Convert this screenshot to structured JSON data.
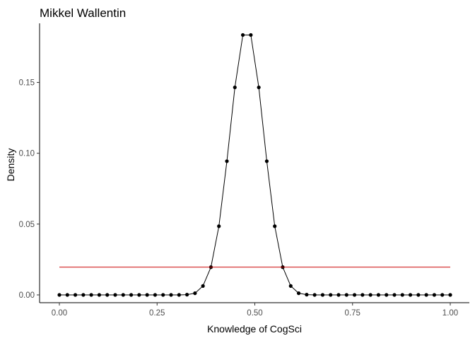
{
  "chart_data": {
    "type": "line",
    "title": "Mikkel Wallentin",
    "xlabel": "Knowledge of CogSci",
    "ylabel": "Density",
    "xlim": [
      0,
      1
    ],
    "ylim": [
      0,
      0.184
    ],
    "x_ticks": [
      0,
      0.25,
      0.5,
      0.75,
      1
    ],
    "x_tick_labels": [
      "0.00",
      "0.25",
      "0.50",
      "0.75",
      "1.00"
    ],
    "y_ticks": [
      0,
      0.05,
      0.1,
      0.15
    ],
    "y_tick_labels": [
      "0.00",
      "0.05",
      "0.10",
      "0.15"
    ],
    "grid": false,
    "legend": "none",
    "series": [
      {
        "style": "line-with-points",
        "color": "#000000",
        "x": [
          0,
          0.020408,
          0.040816,
          0.061224,
          0.081633,
          0.102041,
          0.122449,
          0.142857,
          0.163265,
          0.183673,
          0.204082,
          0.22449,
          0.244898,
          0.265306,
          0.285714,
          0.306122,
          0.326531,
          0.346939,
          0.367347,
          0.387755,
          0.408163,
          0.428571,
          0.44898,
          0.469388,
          0.489796,
          0.510204,
          0.530612,
          0.55102,
          0.571429,
          0.591837,
          0.612245,
          0.632653,
          0.653061,
          0.673469,
          0.693878,
          0.714286,
          0.734694,
          0.755102,
          0.77551,
          0.795918,
          0.816327,
          0.836735,
          0.857143,
          0.877551,
          0.897959,
          0.918367,
          0.938776,
          0.959184,
          0.979592,
          1
        ],
        "y": [
          0,
          0,
          0,
          0,
          0,
          0,
          0,
          0,
          0,
          0,
          0,
          0,
          0,
          0,
          0,
          0,
          0.0002,
          0.0012,
          0.0063,
          0.0196,
          0.0485,
          0.0944,
          0.1465,
          0.1835,
          0.1835,
          0.1465,
          0.0944,
          0.0485,
          0.0196,
          0.0063,
          0.0012,
          0.0002,
          0,
          0,
          0,
          0,
          0,
          0,
          0,
          0,
          0,
          0,
          0,
          0,
          0,
          0,
          0,
          0,
          0,
          0
        ]
      },
      {
        "style": "line",
        "color": "#cc0000",
        "x": [
          0,
          1
        ],
        "y": [
          0.0196,
          0.0196
        ]
      }
    ]
  }
}
